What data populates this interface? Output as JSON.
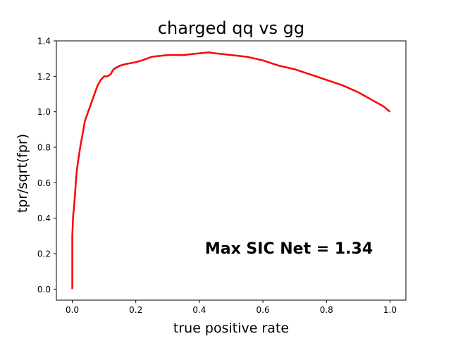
{
  "chart_data": {
    "type": "line",
    "title": "charged qq vs gg",
    "xlabel": "true positive rate",
    "ylabel": "tpr/sqrt(fpr)",
    "xlim": [
      -0.05,
      1.05
    ],
    "ylim": [
      -0.062,
      1.4
    ],
    "xticks": [
      0.0,
      0.2,
      0.4,
      0.6,
      0.8,
      1.0
    ],
    "xtick_labels": [
      "0.0",
      "0.2",
      "0.4",
      "0.6",
      "0.8",
      "1.0"
    ],
    "yticks": [
      0.0,
      0.2,
      0.4,
      0.6,
      0.8,
      1.0,
      1.2,
      1.4
    ],
    "ytick_labels": [
      "0.0",
      "0.2",
      "0.4",
      "0.6",
      "0.8",
      "1.0",
      "1.2",
      "1.4"
    ],
    "grid": false,
    "annotation": "Max SIC Net = 1.34",
    "series": [
      {
        "color": "#ff0000",
        "x": [
          0.0,
          0.0,
          0.003,
          0.005,
          0.008,
          0.012,
          0.015,
          0.02,
          0.025,
          0.03,
          0.035,
          0.04,
          0.05,
          0.06,
          0.07,
          0.08,
          0.09,
          0.1,
          0.11,
          0.12,
          0.13,
          0.15,
          0.17,
          0.2,
          0.22,
          0.25,
          0.3,
          0.35,
          0.4,
          0.43,
          0.45,
          0.5,
          0.55,
          0.6,
          0.65,
          0.7,
          0.75,
          0.8,
          0.85,
          0.9,
          0.95,
          0.98,
          1.0
        ],
        "y": [
          0.0,
          0.3,
          0.42,
          0.45,
          0.52,
          0.62,
          0.68,
          0.74,
          0.8,
          0.85,
          0.9,
          0.95,
          1.0,
          1.05,
          1.1,
          1.15,
          1.18,
          1.2,
          1.2,
          1.21,
          1.24,
          1.26,
          1.27,
          1.28,
          1.29,
          1.31,
          1.32,
          1.32,
          1.33,
          1.335,
          1.33,
          1.32,
          1.31,
          1.29,
          1.26,
          1.24,
          1.21,
          1.18,
          1.15,
          1.11,
          1.06,
          1.03,
          1.0
        ]
      }
    ]
  }
}
